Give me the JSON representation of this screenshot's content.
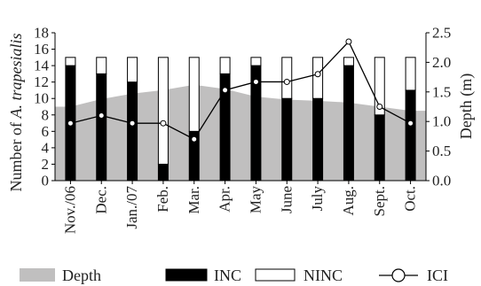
{
  "chart_data": {
    "type": "bar",
    "categories": [
      "Nov./06",
      "Dec.",
      "Jan./07",
      "Feb.",
      "Mar.",
      "Apr.",
      "May",
      "June",
      "July",
      "Aug.",
      "Sept.",
      "Oct."
    ],
    "series": [
      {
        "name": "INC",
        "type": "bar-stacked",
        "color": "#000000",
        "values": [
          14,
          13,
          12,
          2,
          6,
          13,
          14,
          10,
          10,
          14,
          8,
          11
        ]
      },
      {
        "name": "NINC",
        "type": "bar-stacked",
        "color": "#ffffff",
        "values": [
          1,
          2,
          3,
          13,
          9,
          2,
          1,
          5,
          5,
          1,
          7,
          4
        ]
      },
      {
        "name": "ICI",
        "type": "line",
        "axis": "right",
        "color": "#000000",
        "values": [
          0.97,
          1.1,
          0.97,
          0.97,
          0.7,
          1.53,
          1.67,
          1.67,
          1.8,
          2.35,
          1.25,
          0.97
        ]
      },
      {
        "name": "Depth",
        "type": "area",
        "axis": "right",
        "color": "#c0bfbf",
        "values": [
          1.25,
          1.38,
          1.47,
          1.53,
          1.62,
          1.55,
          1.42,
          1.37,
          1.35,
          1.32,
          1.25,
          1.18
        ]
      }
    ],
    "ylabel": "Number of A. trapesialis",
    "ylabel_prefix": "Number of ",
    "ylabel_italic": "A. trapesialis",
    "ylabel_right": "Depth (m)",
    "ylim": [
      0,
      18
    ],
    "yticks": [
      "0",
      "2",
      "4",
      "6",
      "8",
      "10",
      "12",
      "14",
      "16",
      "18"
    ],
    "ylim_right": [
      0,
      2.5
    ],
    "yticks_right": [
      "0.0",
      "0.5",
      "1.0",
      "1.5",
      "2.0",
      "2.5"
    ],
    "grid": false,
    "legend_placement": "bottom",
    "legend": [
      {
        "label": "Depth",
        "symbol": "area",
        "color": "#c0bfbf"
      },
      {
        "label": "INC",
        "symbol": "filled-box",
        "color": "#000000"
      },
      {
        "label": "NINC",
        "symbol": "open-box",
        "color": "#ffffff"
      },
      {
        "label": "ICI",
        "symbol": "line-circle",
        "color": "#000000"
      }
    ]
  }
}
